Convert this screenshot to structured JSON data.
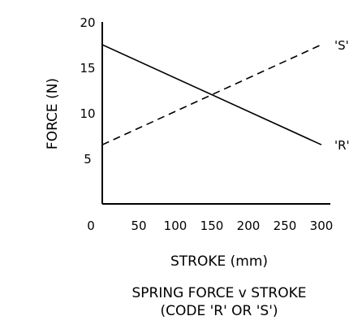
{
  "chart_data": {
    "type": "line",
    "title": "SPRING FORCE v STROKE",
    "subtitle": "(CODE 'R' OR 'S')",
    "xlabel": "STROKE (mm)",
    "ylabel": "FORCE (N)",
    "x_ticks": [
      "0",
      "50",
      "100",
      "150",
      "200",
      "250",
      "300"
    ],
    "y_ticks": [
      "5",
      "10",
      "15",
      "20"
    ],
    "xlim": [
      0,
      300
    ],
    "ylim": [
      0,
      20
    ],
    "grid": false,
    "series": [
      {
        "name": "'R'",
        "style": "solid",
        "x": [
          0,
          300
        ],
        "y": [
          17.5,
          6.5
        ]
      },
      {
        "name": "'S'",
        "style": "dashed",
        "x": [
          0,
          300
        ],
        "y": [
          6.5,
          17.5
        ]
      }
    ]
  }
}
